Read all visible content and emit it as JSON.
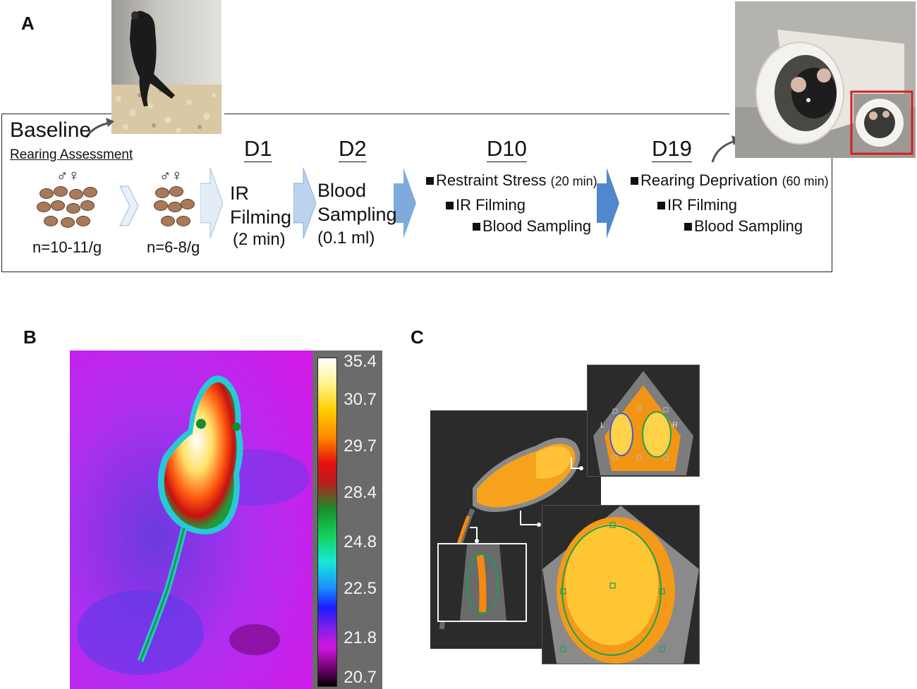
{
  "panels": {
    "a": "A",
    "b": "B",
    "c": "C"
  },
  "timeline": {
    "baseline": "Baseline",
    "rearing_assessment": "Rearing Assessment",
    "symbols": "♂♀",
    "n_first": "n=10-11/g",
    "n_second": "n=6-8/g",
    "d1": {
      "day": "D1",
      "line1": "IR",
      "line2": "Filming",
      "line3": "(2 min)"
    },
    "d2": {
      "day": "D2",
      "line1": "Blood",
      "line2": "Sampling",
      "line3": "(0.1 ml)"
    },
    "d10": {
      "day": "D10",
      "item1": "Restraint Stress",
      "item1_time": "(20 min)",
      "item2": "IR Filming",
      "item3": "Blood Sampling"
    },
    "d19": {
      "day": "D19",
      "item1": "Rearing Deprivation",
      "item1_time": "(60 min)",
      "item2": "IR Filming",
      "item3": "Blood Sampling"
    }
  },
  "colorbar": {
    "ticks": [
      "35.4",
      "30.7",
      "29.7",
      "28.4",
      "24.8",
      "22.5",
      "21.8",
      "20.7"
    ]
  },
  "roi_labels": {
    "left": "L",
    "right": "R"
  }
}
